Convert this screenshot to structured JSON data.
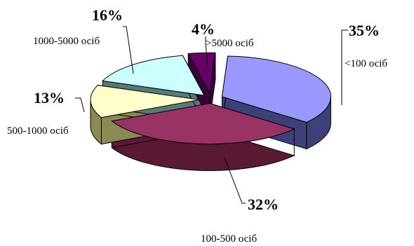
{
  "chart_data": {
    "type": "pie",
    "three_d": true,
    "exploded": true,
    "legend": "none",
    "slices": [
      {
        "category": "<100 осіб",
        "value": 35,
        "label": "35%",
        "color": "#9999ff",
        "side_color": "#3f3f7a"
      },
      {
        "category": "100-500 осіб",
        "value": 32,
        "label": "32%",
        "color": "#993366",
        "side_color": "#5a1a34"
      },
      {
        "category": "500-1000 осіб",
        "value": 13,
        "label": "13%",
        "color": "#ffffcc",
        "side_color": "#8a8a55"
      },
      {
        "category": "1000-5000 осіб",
        "value": 16,
        "label": "16%",
        "color": "#ccffff",
        "side_color": "#5a7878"
      },
      {
        "category": ">5000 осіб",
        "value": 4,
        "label": "4%",
        "color": "#660066",
        "side_color": "#3a003a"
      }
    ]
  }
}
